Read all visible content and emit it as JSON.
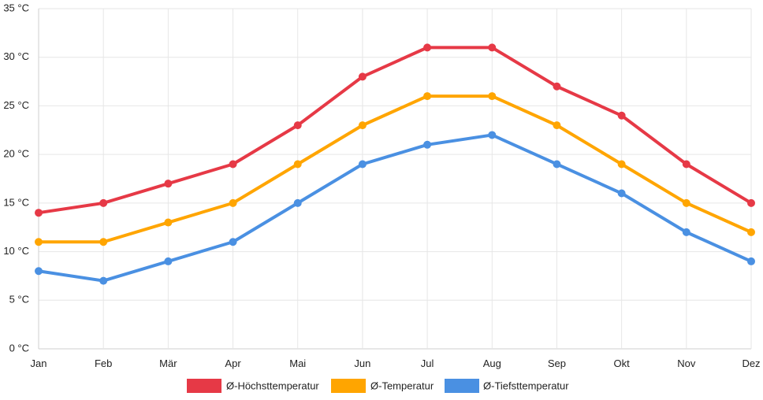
{
  "chart_data": {
    "type": "line",
    "title": "",
    "xlabel": "",
    "ylabel": "",
    "categories": [
      "Jan",
      "Feb",
      "Mär",
      "Apr",
      "Mai",
      "Jun",
      "Jul",
      "Aug",
      "Sep",
      "Okt",
      "Nov",
      "Dez"
    ],
    "ylim": [
      0,
      35
    ],
    "y_ticks": [
      {
        "value": 0,
        "label": "0 °C"
      },
      {
        "value": 5,
        "label": "5 °C"
      },
      {
        "value": 10,
        "label": "10 °C"
      },
      {
        "value": 15,
        "label": "15 °C"
      },
      {
        "value": 20,
        "label": "20 °C"
      },
      {
        "value": 25,
        "label": "25 °C"
      },
      {
        "value": 30,
        "label": "30 °C"
      },
      {
        "value": 35,
        "label": "35 °C"
      }
    ],
    "grid": true,
    "legend_position": "bottom",
    "series": [
      {
        "name": "Ø-Höchsttemperatur",
        "color": "#e63946",
        "values": [
          14,
          15,
          17,
          19,
          23,
          28,
          31,
          31,
          27,
          24,
          19,
          15
        ]
      },
      {
        "name": "Ø-Temperatur",
        "color": "#ffa500",
        "values": [
          11,
          11,
          13,
          15,
          19,
          23,
          26,
          26,
          23,
          19,
          15,
          12
        ]
      },
      {
        "name": "Ø-Tiefsttemperatur",
        "color": "#4a90e2",
        "values": [
          8,
          7,
          9,
          11,
          15,
          19,
          21,
          22,
          19,
          16,
          12,
          9
        ]
      }
    ]
  }
}
